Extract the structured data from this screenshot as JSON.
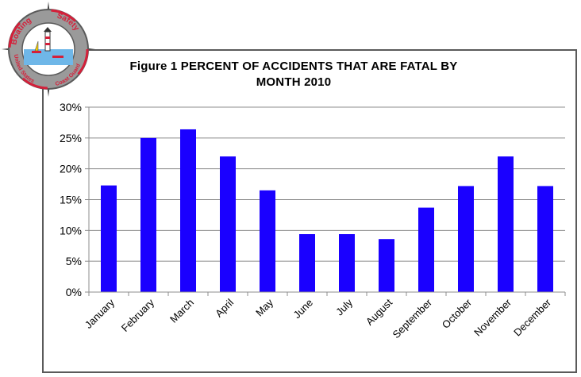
{
  "emblem": {
    "top_text": "Boating",
    "top_text_right": "Safety",
    "bottom_left_text": "United States",
    "bottom_right_text": "Coast Guard",
    "ring_color": "#8a8a8a",
    "accent_color": "#d4203a"
  },
  "chart_data": {
    "type": "bar",
    "title": "Figure 1  PERCENT OF ACCIDENTS THAT ARE FATAL BY MONTH 2010",
    "title_lines": [
      "Figure 1  PERCENT OF ACCIDENTS THAT ARE FATAL BY",
      "MONTH 2010"
    ],
    "categories": [
      "January",
      "February",
      "March",
      "April",
      "May",
      "June",
      "July",
      "August",
      "September",
      "October",
      "November",
      "December"
    ],
    "values": [
      17.3,
      25.0,
      26.4,
      22.0,
      16.5,
      9.4,
      9.4,
      8.6,
      13.7,
      17.2,
      22.0,
      17.2
    ],
    "ylim": [
      0,
      30
    ],
    "yticks": [
      0,
      5,
      10,
      15,
      20,
      25,
      30
    ],
    "ytick_labels": [
      "0%",
      "5%",
      "10%",
      "15%",
      "20%",
      "25%",
      "30%"
    ],
    "xlabel": "",
    "ylabel": "",
    "grid": true,
    "legend": "none",
    "bar_color": "#1a00ff"
  }
}
